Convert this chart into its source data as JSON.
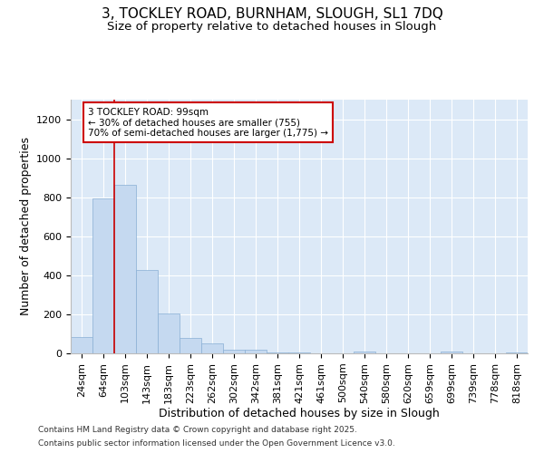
{
  "title1": "3, TOCKLEY ROAD, BURNHAM, SLOUGH, SL1 7DQ",
  "title2": "Size of property relative to detached houses in Slough",
  "xlabel": "Distribution of detached houses by size in Slough",
  "ylabel": "Number of detached properties",
  "categories": [
    "24sqm",
    "64sqm",
    "103sqm",
    "143sqm",
    "183sqm",
    "223sqm",
    "262sqm",
    "302sqm",
    "342sqm",
    "381sqm",
    "421sqm",
    "461sqm",
    "500sqm",
    "540sqm",
    "580sqm",
    "620sqm",
    "659sqm",
    "699sqm",
    "739sqm",
    "778sqm",
    "818sqm"
  ],
  "values": [
    82,
    795,
    865,
    425,
    205,
    80,
    50,
    20,
    20,
    5,
    3,
    1,
    0,
    8,
    0,
    0,
    0,
    8,
    0,
    0,
    5
  ],
  "bar_color": "#c5d9f0",
  "bar_edge_color": "#89afd4",
  "background_color": "#dce9f7",
  "grid_color": "#ffffff",
  "vline_color": "#cc0000",
  "vline_x_index": 2,
  "annotation_text": "3 TOCKLEY ROAD: 99sqm\n← 30% of detached houses are smaller (755)\n70% of semi-detached houses are larger (1,775) →",
  "annotation_box_color": "#ffffff",
  "annotation_box_edge": "#cc0000",
  "ylim": [
    0,
    1300
  ],
  "yticks": [
    0,
    200,
    400,
    600,
    800,
    1000,
    1200
  ],
  "footer1": "Contains HM Land Registry data © Crown copyright and database right 2025.",
  "footer2": "Contains public sector information licensed under the Open Government Licence v3.0.",
  "fig_bg": "#ffffff",
  "title_fontsize": 11,
  "subtitle_fontsize": 9.5,
  "axis_label_fontsize": 9,
  "tick_fontsize": 8,
  "footer_fontsize": 6.5
}
